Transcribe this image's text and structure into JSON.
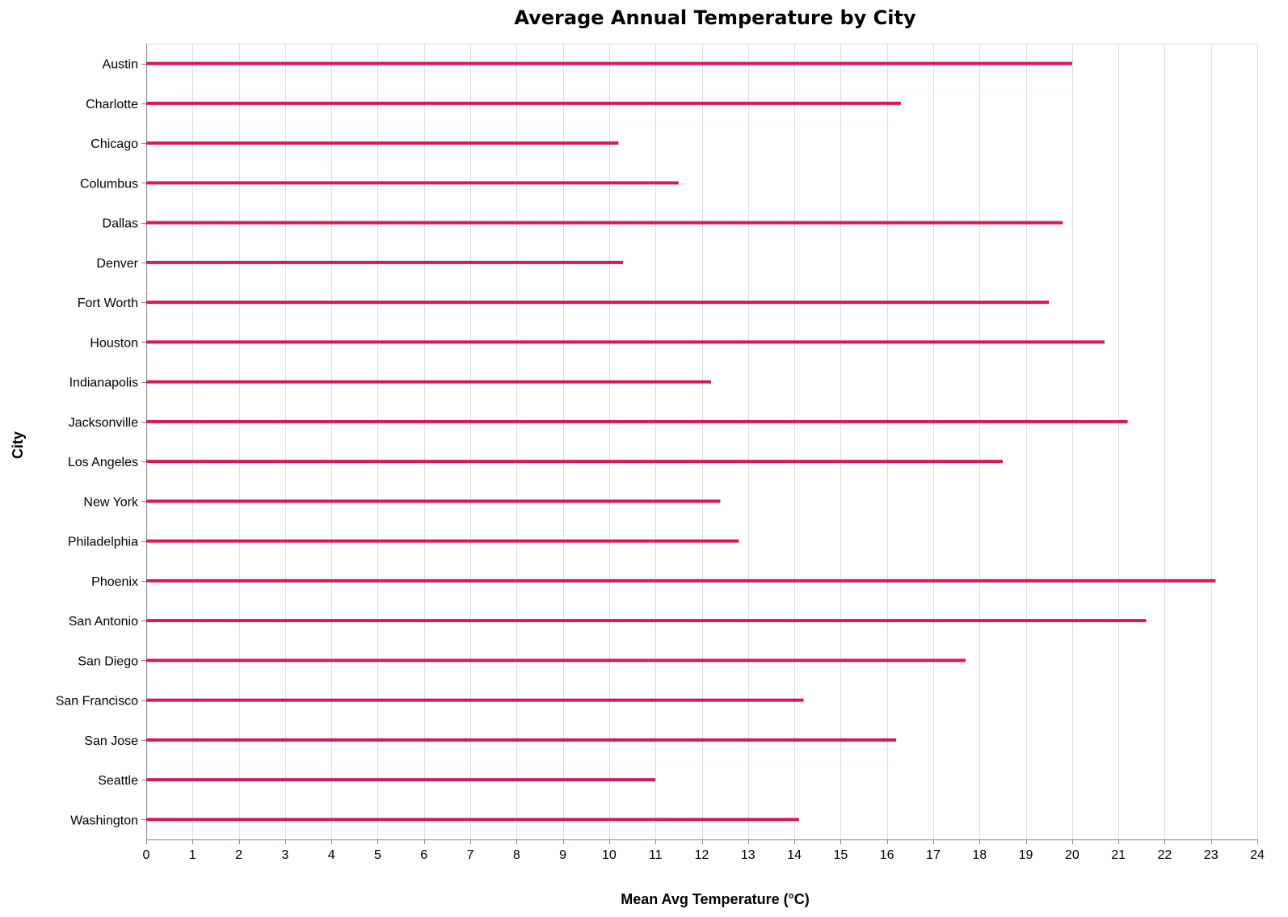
{
  "chart_data": {
    "type": "bar",
    "orientation": "horizontal",
    "title": "Average Annual Temperature by City",
    "xlabel": "Mean Avg Temperature (°C)",
    "ylabel": "City",
    "xlim": [
      0,
      24
    ],
    "x_ticks": [
      0,
      1,
      2,
      3,
      4,
      5,
      6,
      7,
      8,
      9,
      10,
      11,
      12,
      13,
      14,
      15,
      16,
      17,
      18,
      19,
      20,
      21,
      22,
      23,
      24
    ],
    "grid": true,
    "bar_color": "#d6175c",
    "categories": [
      "Austin",
      "Charlotte",
      "Chicago",
      "Columbus",
      "Dallas",
      "Denver",
      "Fort Worth",
      "Houston",
      "Indianapolis",
      "Jacksonville",
      "Los Angeles",
      "New York",
      "Philadelphia",
      "Phoenix",
      "San Antonio",
      "San Diego",
      "San Francisco",
      "San Jose",
      "Seattle",
      "Washington"
    ],
    "values": [
      20.0,
      16.3,
      10.2,
      11.5,
      19.8,
      10.3,
      19.5,
      20.7,
      12.2,
      21.2,
      18.5,
      12.4,
      12.8,
      23.1,
      21.6,
      17.7,
      14.2,
      16.2,
      11.0,
      14.1
    ]
  }
}
